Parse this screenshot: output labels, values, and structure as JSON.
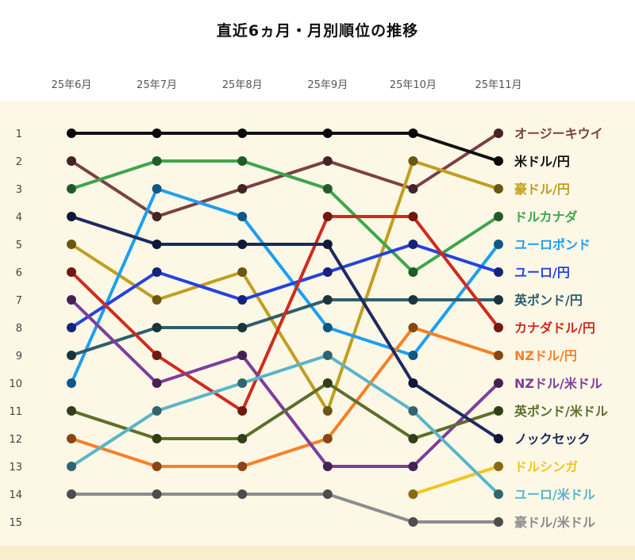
{
  "title": "直近6ヵ月・月別順位の推移",
  "chart_data": {
    "type": "line",
    "subtype": "bump-rank-chart",
    "title": "直近6ヵ月・月別順位の推移",
    "months": [
      "25年6月",
      "25年7月",
      "25年8月",
      "25年9月",
      "25年10月",
      "25年11月"
    ],
    "rank_axis": [
      1,
      2,
      3,
      4,
      5,
      6,
      7,
      8,
      9,
      10,
      11,
      12,
      13,
      14,
      15
    ],
    "rank_axis_inverted": true,
    "grid": false,
    "legend_position": "right",
    "background_color": "#fdf8e6",
    "footer_band_color": "#f8efca",
    "series": [
      {
        "name": "オージーキウイ",
        "color": "#7b4046",
        "ranks": [
          2,
          4,
          3,
          2,
          3,
          1
        ]
      },
      {
        "name": "米ドル/円",
        "color": "#111111",
        "ranks": [
          1,
          1,
          1,
          1,
          1,
          2
        ]
      },
      {
        "name": "豪ドル/円",
        "color": "#c19e1f",
        "ranks": [
          5,
          7,
          6,
          11,
          2,
          3
        ]
      },
      {
        "name": "ドルカナダ",
        "color": "#3da64b",
        "ranks": [
          3,
          2,
          2,
          3,
          6,
          4
        ]
      },
      {
        "name": "ユーロポンド",
        "color": "#1d9ff2",
        "ranks": [
          10,
          3,
          4,
          8,
          9,
          5
        ]
      },
      {
        "name": "ユーロ/円",
        "color": "#2642dd",
        "ranks": [
          8,
          6,
          7,
          6,
          5,
          6
        ]
      },
      {
        "name": "英ポンド/円",
        "color": "#2e5e6e",
        "ranks": [
          9,
          8,
          8,
          7,
          7,
          7
        ]
      },
      {
        "name": "カナダドル/円",
        "color": "#d02a1f",
        "ranks": [
          6,
          9,
          11,
          4,
          4,
          8
        ]
      },
      {
        "name": "NZドル/円",
        "color": "#f97f27",
        "ranks": [
          12,
          13,
          13,
          12,
          8,
          9
        ]
      },
      {
        "name": "NZドル/米ドル",
        "color": "#7c3e9c",
        "ranks": [
          7,
          10,
          9,
          13,
          13,
          10
        ]
      },
      {
        "name": "英ポンド/米ドル",
        "color": "#5d6f2b",
        "ranks": [
          11,
          12,
          12,
          10,
          12,
          11
        ]
      },
      {
        "name": "ノックセック",
        "color": "#1e2a5e",
        "ranks": [
          4,
          5,
          5,
          5,
          10,
          12
        ]
      },
      {
        "name": "ドルシンガ",
        "color": "#f3c421",
        "ranks": [
          null,
          null,
          null,
          null,
          14,
          13
        ]
      },
      {
        "name": "ユーロ/米ドル",
        "color": "#5ab5c8",
        "ranks": [
          13,
          11,
          10,
          9,
          11,
          14
        ]
      },
      {
        "name": "豪ドル/米ドル",
        "color": "#8c8c8c",
        "ranks": [
          14,
          14,
          14,
          14,
          15,
          15
        ]
      }
    ]
  }
}
